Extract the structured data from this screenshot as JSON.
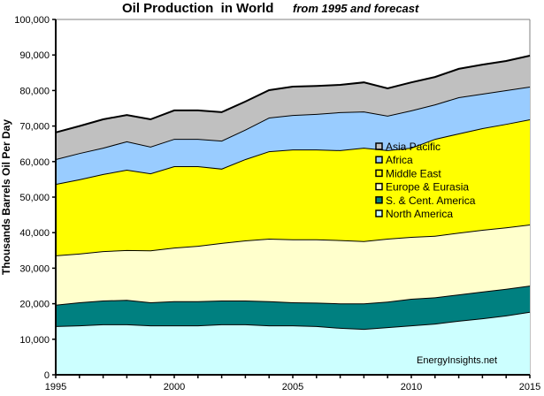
{
  "chart_data": {
    "type": "area",
    "stacked": true,
    "title": "Oil Production  in World",
    "subtitle": "from 1995 and forecast",
    "xlabel": "",
    "ylabel": "Thousands Barrels Oil Per Day",
    "xlim": [
      1995,
      2015
    ],
    "ylim": [
      0,
      100000
    ],
    "x_ticks": [
      1995,
      2000,
      2005,
      2010,
      2015
    ],
    "x_minor_step": 1,
    "y_ticks": [
      0,
      10000,
      20000,
      30000,
      40000,
      50000,
      60000,
      70000,
      80000,
      90000,
      100000
    ],
    "y_tick_labels": [
      "0",
      "10,000",
      "20,000",
      "30,000",
      "40,000",
      "50,000",
      "60,000",
      "70,000",
      "80,000",
      "90,000",
      "100,000"
    ],
    "grid": false,
    "legend_position": "center-right (inside plot)",
    "annotation": "EnergyInsights.net",
    "x": [
      1995,
      1996,
      1997,
      1998,
      1999,
      2000,
      2001,
      2002,
      2003,
      2004,
      2005,
      2006,
      2007,
      2008,
      2009,
      2010,
      2011,
      2012,
      2013,
      2014,
      2015
    ],
    "series": [
      {
        "name": "North America",
        "color": "#ccffff",
        "values": [
          13700,
          13900,
          14200,
          14200,
          13900,
          13900,
          13900,
          14200,
          14200,
          13900,
          13900,
          13700,
          13200,
          12900,
          13400,
          13900,
          14400,
          15200,
          15900,
          16700,
          17700
        ]
      },
      {
        "name": "S. & Cent. America",
        "color": "#008080",
        "values": [
          6000,
          6500,
          6700,
          6900,
          6500,
          6800,
          6800,
          6700,
          6700,
          6800,
          6500,
          6600,
          6900,
          7200,
          7200,
          7500,
          7400,
          7400,
          7500,
          7500,
          7400
        ]
      },
      {
        "name": "Europe & Eurasia",
        "color": "#ffffcc",
        "values": [
          13900,
          13700,
          13900,
          14000,
          14600,
          15100,
          15600,
          16200,
          16900,
          17600,
          17700,
          17800,
          17800,
          17500,
          17700,
          17400,
          17300,
          17400,
          17400,
          17300,
          17200
        ]
      },
      {
        "name": "Middle East",
        "color": "#ffff00",
        "values": [
          20100,
          20900,
          21700,
          22600,
          21700,
          22900,
          22400,
          20900,
          22900,
          24600,
          25300,
          25300,
          25300,
          26300,
          24900,
          25100,
          27300,
          27900,
          28600,
          29100,
          29600
        ]
      },
      {
        "name": "Africa",
        "color": "#99ccff",
        "values": [
          7000,
          7400,
          7400,
          8000,
          7500,
          7700,
          7700,
          7900,
          8300,
          9500,
          9700,
          10000,
          10700,
          10200,
          9700,
          10500,
          9700,
          10200,
          9700,
          9500,
          9200
        ]
      },
      {
        "name": "Asia Pacific",
        "color": "#c0c0c0",
        "values": [
          7500,
          7600,
          8000,
          7400,
          7700,
          8000,
          8000,
          8000,
          7900,
          7700,
          8000,
          7900,
          7700,
          8200,
          7700,
          7900,
          7700,
          8000,
          8200,
          8200,
          8700
        ]
      }
    ],
    "legend_order": [
      "Asia Pacific",
      "Africa",
      "Middle East",
      "Europe & Eurasia",
      "S. & Cent. America",
      "North America"
    ]
  }
}
